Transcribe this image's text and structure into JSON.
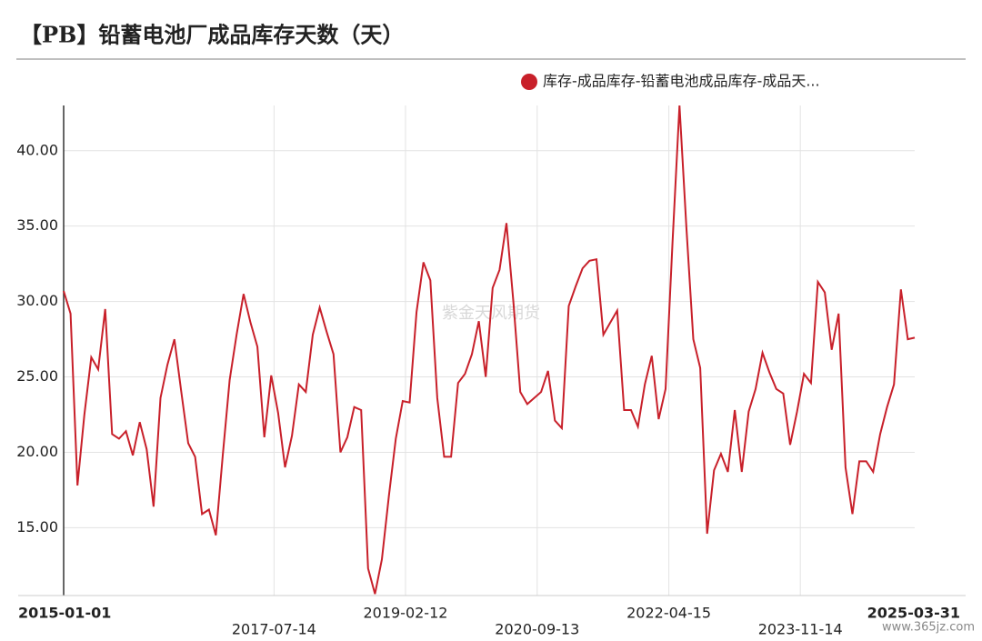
{
  "chart_data": {
    "type": "line",
    "title": "【PB】铅蓄电池厂成品库存天数（天）",
    "watermark": "紫金天风期货",
    "footer": "www.365jz.com",
    "xlim": [
      "2015-01-01",
      "2025-03-31"
    ],
    "xticks": [
      "2015-01-01",
      "2017-07-14",
      "2019-02-12",
      "2020-09-13",
      "2022-04-15",
      "2023-11-14",
      "2025-03-31"
    ],
    "ylim": [
      10.5,
      43
    ],
    "yticks": [
      {
        "value": 15,
        "label": "15.00"
      },
      {
        "value": 20,
        "label": "20.00"
      },
      {
        "value": 25,
        "label": "25.00"
      },
      {
        "value": 30,
        "label": "30.00"
      },
      {
        "value": 35,
        "label": "35.00"
      },
      {
        "value": 40,
        "label": "40.00"
      }
    ],
    "grid": true,
    "legend": "top-right",
    "series": [
      {
        "name": "库存-成品库存-铅蓄电池成品库存-成品天...",
        "color": "#c8202a",
        "values": [
          30.7,
          29.2,
          17.8,
          22.5,
          26.3,
          25.5,
          29.5,
          21.2,
          20.9,
          21.4,
          19.8,
          22.0,
          20.2,
          16.4,
          23.6,
          25.8,
          27.5,
          24.0,
          20.6,
          19.7,
          15.9,
          16.2,
          14.5,
          19.8,
          24.8,
          27.8,
          30.5,
          28.6,
          27.0,
          21.0,
          25.1,
          22.6,
          19.0,
          21.1,
          24.5,
          24.0,
          27.8,
          29.6,
          28.0,
          26.5,
          20.0,
          21.0,
          23.0,
          22.8,
          12.3,
          10.6,
          12.9,
          17.1,
          20.9,
          23.4,
          23.3,
          29.3,
          32.6,
          31.4,
          23.6,
          19.7,
          19.7,
          24.6,
          25.2,
          26.5,
          28.7,
          25.0,
          30.9,
          32.1,
          35.2,
          30.0,
          24.0,
          23.2,
          23.6,
          24.0,
          25.4,
          22.1,
          21.6,
          29.7,
          31.0,
          32.2,
          32.7,
          32.8,
          27.8,
          28.6,
          29.4,
          22.8,
          22.8,
          21.7,
          24.5,
          26.4,
          22.2,
          24.2,
          34.0,
          43.0,
          34.9,
          27.5,
          25.6,
          14.6,
          18.8,
          19.9,
          18.7,
          22.8,
          18.7,
          22.7,
          24.2,
          26.6,
          25.3,
          24.2,
          23.9,
          20.5,
          22.7,
          25.2,
          24.6,
          31.3,
          30.6,
          26.8,
          29.2,
          19.0,
          15.9,
          19.4,
          19.4,
          18.7,
          21.2,
          23.0,
          24.5,
          30.8,
          27.5,
          27.6
        ]
      }
    ]
  }
}
